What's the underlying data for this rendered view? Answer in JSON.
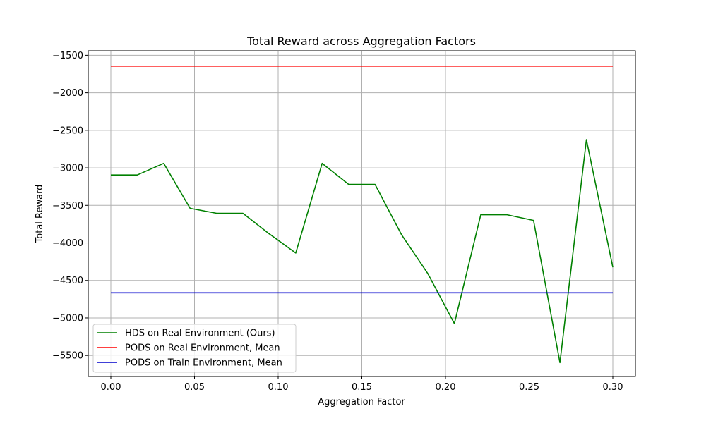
{
  "chart_data": {
    "type": "line",
    "title": "Total Reward across Aggregation Factors",
    "xlabel": "Aggregation Factor",
    "ylabel": "Total Reward",
    "xlim": [
      -0.0135,
      0.3135
    ],
    "ylim": [
      -5780,
      -1440
    ],
    "xticks": [
      0.0,
      0.05,
      0.1,
      0.15,
      0.2,
      0.25,
      0.3
    ],
    "xtick_labels": [
      "0.00",
      "0.05",
      "0.10",
      "0.15",
      "0.20",
      "0.25",
      "0.30"
    ],
    "yticks": [
      -1500,
      -2000,
      -2500,
      -3000,
      -3500,
      -4000,
      -4500,
      -5000,
      -5500
    ],
    "ytick_labels": [
      "−1500",
      "−2000",
      "−2500",
      "−3000",
      "−3500",
      "−4000",
      "−4500",
      "−5000",
      "−5500"
    ],
    "grid": true,
    "legend_position": "lower-left",
    "series": [
      {
        "name": "HDS on Real Environment (Ours)",
        "color": "#008000",
        "x": [
          0.0,
          0.0158,
          0.0316,
          0.0474,
          0.0632,
          0.0789,
          0.0947,
          0.1105,
          0.1263,
          0.1421,
          0.1579,
          0.1737,
          0.1895,
          0.2053,
          0.2211,
          0.2368,
          0.2526,
          0.2684,
          0.2842,
          0.3
        ],
        "y": [
          -3095,
          -3095,
          -2940,
          -3540,
          -3605,
          -3605,
          -3880,
          -4135,
          -2940,
          -3220,
          -3220,
          -3890,
          -4410,
          -5075,
          -3625,
          -3625,
          -3700,
          -5595,
          -2625,
          -4325
        ]
      },
      {
        "name": "PODS on Real Environment, Mean",
        "color": "#ff0000",
        "x": [
          0.0,
          0.3
        ],
        "y": [
          -1645,
          -1645
        ]
      },
      {
        "name": "PODS on Train Environment, Mean",
        "color": "#0000cc",
        "x": [
          0.0,
          0.3
        ],
        "y": [
          -4665,
          -4665
        ]
      }
    ]
  }
}
